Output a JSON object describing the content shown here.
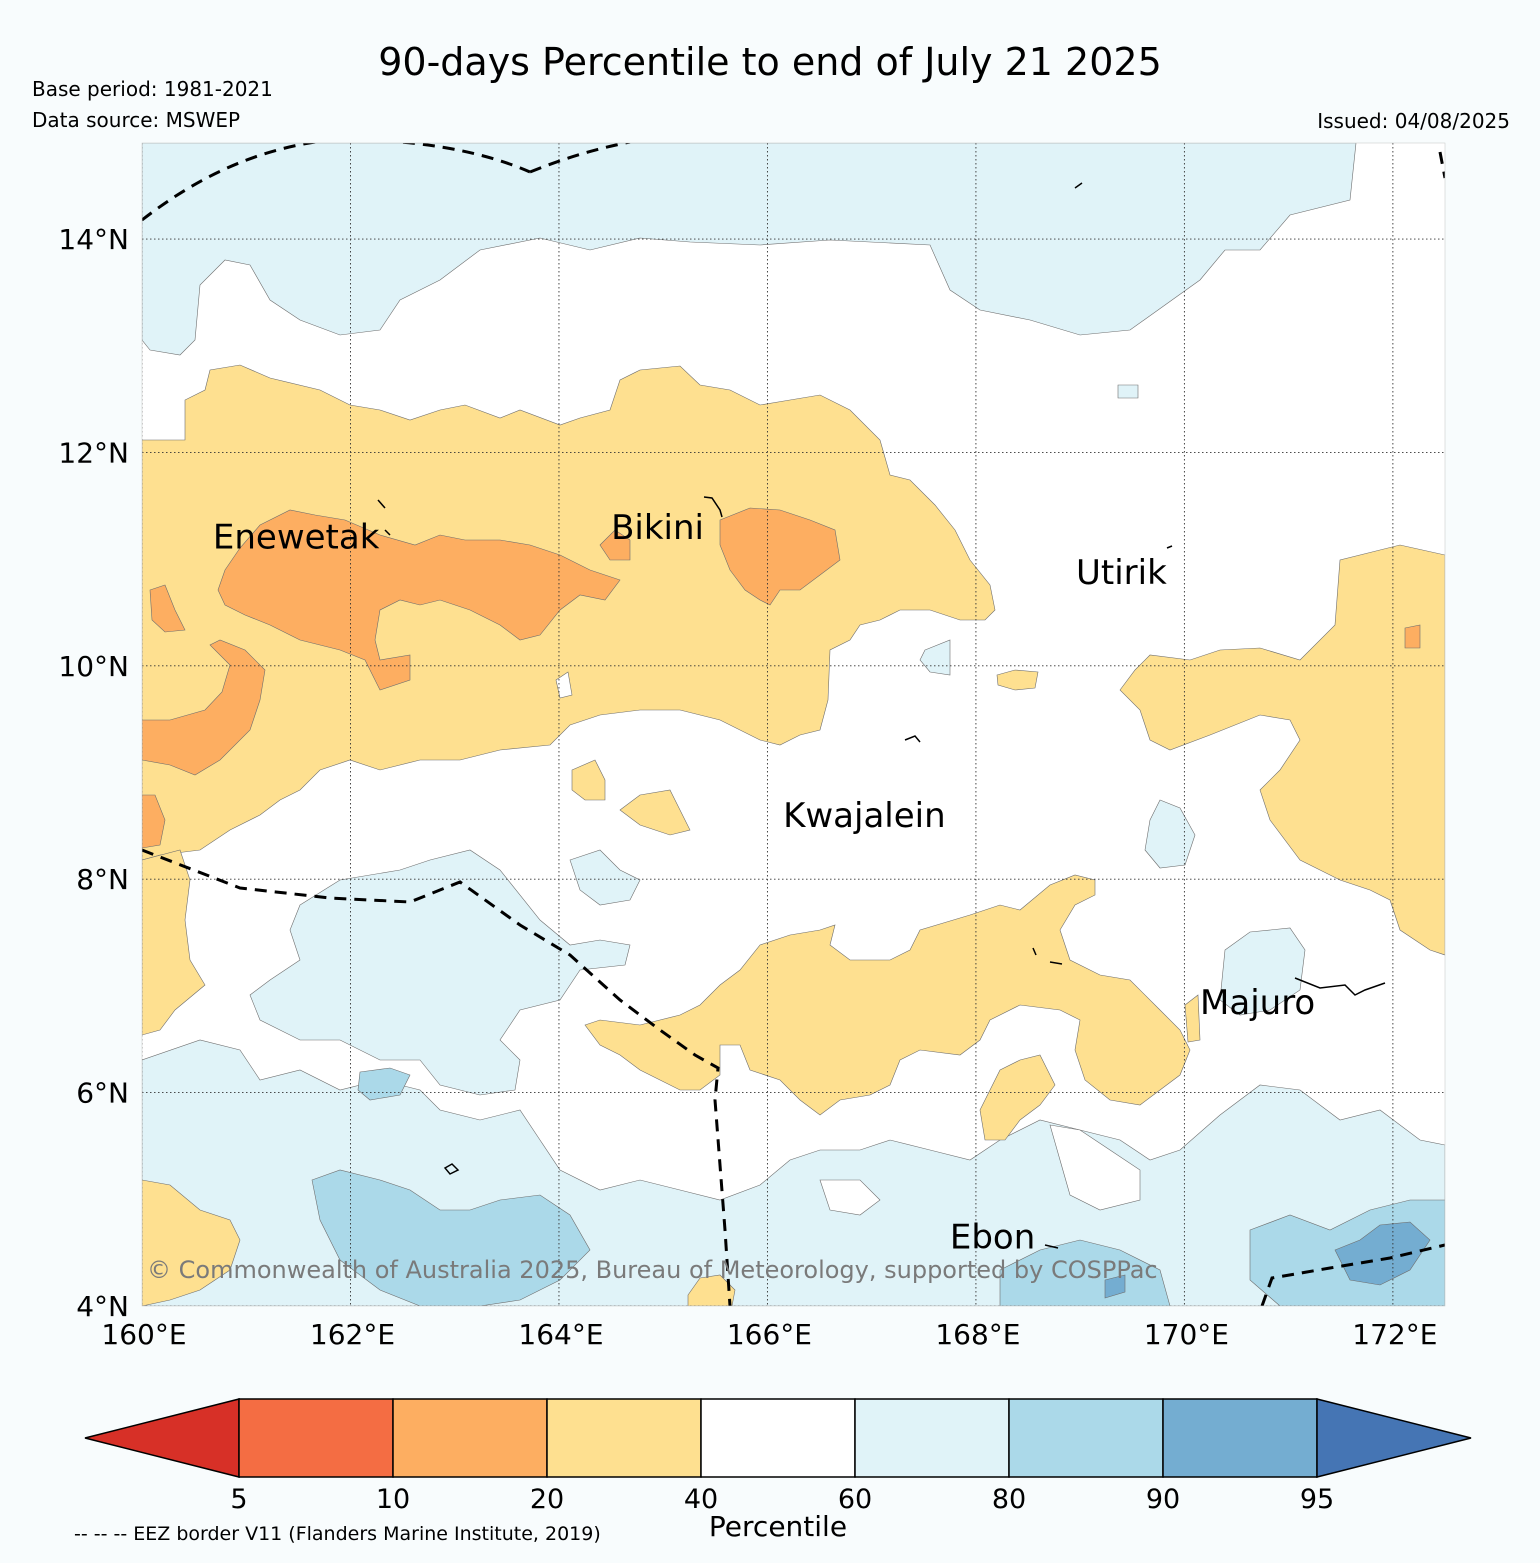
{
  "header": {
    "title": "90-days Percentile to end of July 21 2025",
    "base_period": "Base period: 1981-2021",
    "data_source": "Data source: MSWEP",
    "issued": "Issued: 04/08/2025"
  },
  "map": {
    "lon_range": [
      160,
      172.5
    ],
    "lat_range": [
      4,
      14.9
    ],
    "lon_ticks": [
      {
        "value": 160,
        "label": "160°E"
      },
      {
        "value": 162,
        "label": "162°E"
      },
      {
        "value": 164,
        "label": "164°E"
      },
      {
        "value": 166,
        "label": "166°E"
      },
      {
        "value": 168,
        "label": "168°E"
      },
      {
        "value": 170,
        "label": "170°E"
      },
      {
        "value": 172,
        "label": "172°E"
      }
    ],
    "lat_ticks": [
      {
        "value": 4,
        "label": "4°N"
      },
      {
        "value": 6,
        "label": "6°N"
      },
      {
        "value": 8,
        "label": "8°N"
      },
      {
        "value": 10,
        "label": "10°N"
      },
      {
        "value": 12,
        "label": "12°N"
      },
      {
        "value": 14,
        "label": "14°N"
      }
    ],
    "places": [
      {
        "name": "Enewetak",
        "lon": 160.68,
        "lat": 11.21
      },
      {
        "name": "Bikini",
        "lon": 164.5,
        "lat": 11.3
      },
      {
        "name": "Utirik",
        "lon": 168.96,
        "lat": 10.88
      },
      {
        "name": "Kwajalein",
        "lon": 166.15,
        "lat": 8.6
      },
      {
        "name": "Majuro",
        "lon": 170.15,
        "lat": 6.85
      },
      {
        "name": "Ebon",
        "lon": 167.75,
        "lat": 4.65
      }
    ],
    "copyright": "© Commonwealth of Australia 2025, Bureau of Meteorology, supported by COSPPac"
  },
  "legend": {
    "label": "Percentile",
    "ticks": [
      "5",
      "10",
      "20",
      "40",
      "60",
      "80",
      "90",
      "95"
    ],
    "colors": {
      "below_5": "#d73027",
      "p5_10": "#f46d43",
      "p10_20": "#fdae61",
      "p20_40": "#fee090",
      "p40_60": "#ffffff",
      "p60_80": "#e0f3f8",
      "p80_90": "#abd9e9",
      "p90_95": "#74add1",
      "above_95": "#4575b4"
    }
  },
  "footer": {
    "eez_note": "-- -- -- EEZ border V11 (Flanders Marine Institute, 2019)"
  }
}
